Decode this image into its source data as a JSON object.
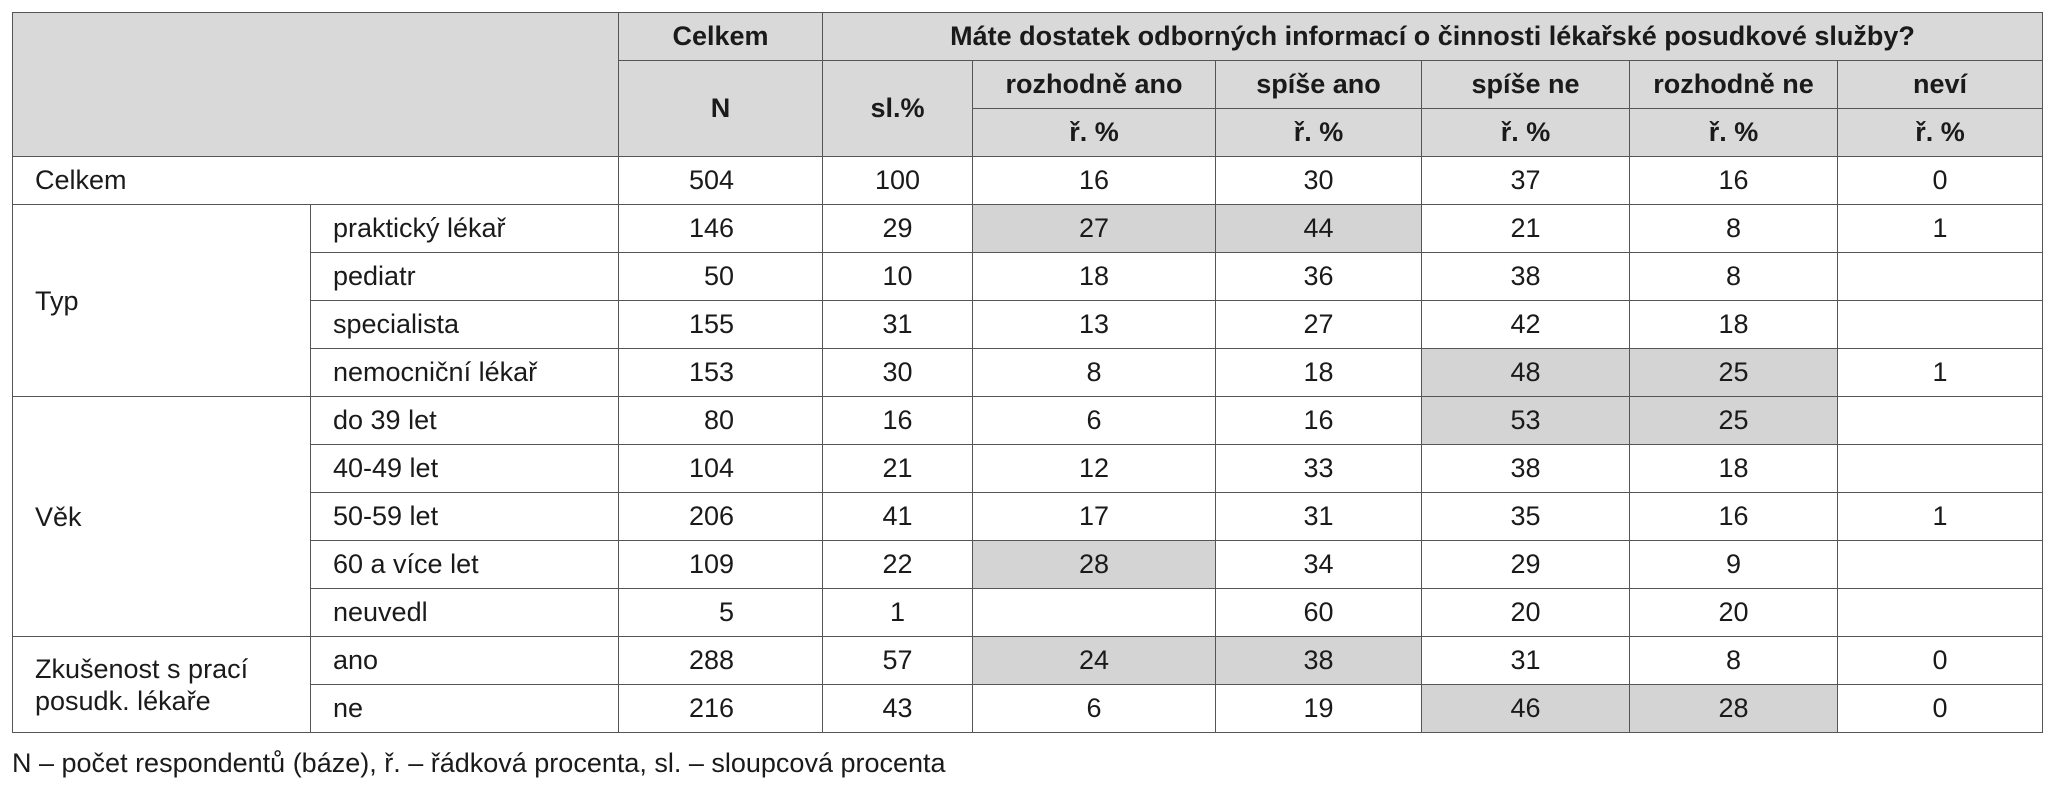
{
  "header": {
    "celkem": "Celkem",
    "question": "Máte dostatek odborných informací o činnosti lékařské posudkové služby?",
    "n": "N",
    "sl_pct": "sl.%",
    "answers": [
      "rozhodně ano",
      "spíše ano",
      "spíše ne",
      "rozhodně ne",
      "neví"
    ],
    "row_pct": "ř. %"
  },
  "total_row": {
    "label": "Celkem",
    "cells": [
      "504",
      "100",
      "16",
      "30",
      "37",
      "16",
      "0"
    ],
    "highlight": [
      false,
      false,
      false,
      false,
      false,
      false,
      false
    ]
  },
  "groups": [
    {
      "label": "Typ",
      "rows": [
        {
          "label": "praktický lékař",
          "cells": [
            "146",
            "29",
            "27",
            "44",
            "21",
            "8",
            "1"
          ],
          "highlight": [
            false,
            false,
            true,
            true,
            false,
            false,
            false
          ]
        },
        {
          "label": "pediatr",
          "cells": [
            "50",
            "10",
            "18",
            "36",
            "38",
            "8",
            ""
          ],
          "highlight": [
            false,
            false,
            false,
            false,
            false,
            false,
            false
          ]
        },
        {
          "label": "specialista",
          "cells": [
            "155",
            "31",
            "13",
            "27",
            "42",
            "18",
            ""
          ],
          "highlight": [
            false,
            false,
            false,
            false,
            false,
            false,
            false
          ]
        },
        {
          "label": "nemocniční lékař",
          "cells": [
            "153",
            "30",
            "8",
            "18",
            "48",
            "25",
            "1"
          ],
          "highlight": [
            false,
            false,
            false,
            false,
            true,
            true,
            false
          ]
        }
      ]
    },
    {
      "label": "Věk",
      "rows": [
        {
          "label": "do 39 let",
          "cells": [
            "80",
            "16",
            "6",
            "16",
            "53",
            "25",
            ""
          ],
          "highlight": [
            false,
            false,
            false,
            false,
            true,
            true,
            false
          ]
        },
        {
          "label": "40-49 let",
          "cells": [
            "104",
            "21",
            "12",
            "33",
            "38",
            "18",
            ""
          ],
          "highlight": [
            false,
            false,
            false,
            false,
            false,
            false,
            false
          ]
        },
        {
          "label": "50-59 let",
          "cells": [
            "206",
            "41",
            "17",
            "31",
            "35",
            "16",
            "1"
          ],
          "highlight": [
            false,
            false,
            false,
            false,
            false,
            false,
            false
          ]
        },
        {
          "label": "60 a více let",
          "cells": [
            "109",
            "22",
            "28",
            "34",
            "29",
            "9",
            ""
          ],
          "highlight": [
            false,
            false,
            true,
            false,
            false,
            false,
            false
          ]
        },
        {
          "label": "neuvedl",
          "cells": [
            "5",
            "1",
            "",
            "60",
            "20",
            "20",
            ""
          ],
          "highlight": [
            false,
            false,
            false,
            false,
            false,
            false,
            false
          ]
        }
      ]
    },
    {
      "label": "Zkušenost s prací posudk. lékaře",
      "rows": [
        {
          "label": "ano",
          "cells": [
            "288",
            "57",
            "24",
            "38",
            "31",
            "8",
            "0"
          ],
          "highlight": [
            false,
            false,
            true,
            true,
            false,
            false,
            false
          ]
        },
        {
          "label": "ne",
          "cells": [
            "216",
            "43",
            "6",
            "19",
            "46",
            "28",
            "0"
          ],
          "highlight": [
            false,
            false,
            false,
            false,
            true,
            true,
            false
          ]
        }
      ]
    }
  ],
  "footnote": "N – počet respondentů (báze), ř. – řádková procenta,   sl. – sloupcová procenta",
  "colors": {
    "header_bg": "#d9d9d9",
    "highlight_bg": "#d4d4d4",
    "border": "#555555"
  }
}
